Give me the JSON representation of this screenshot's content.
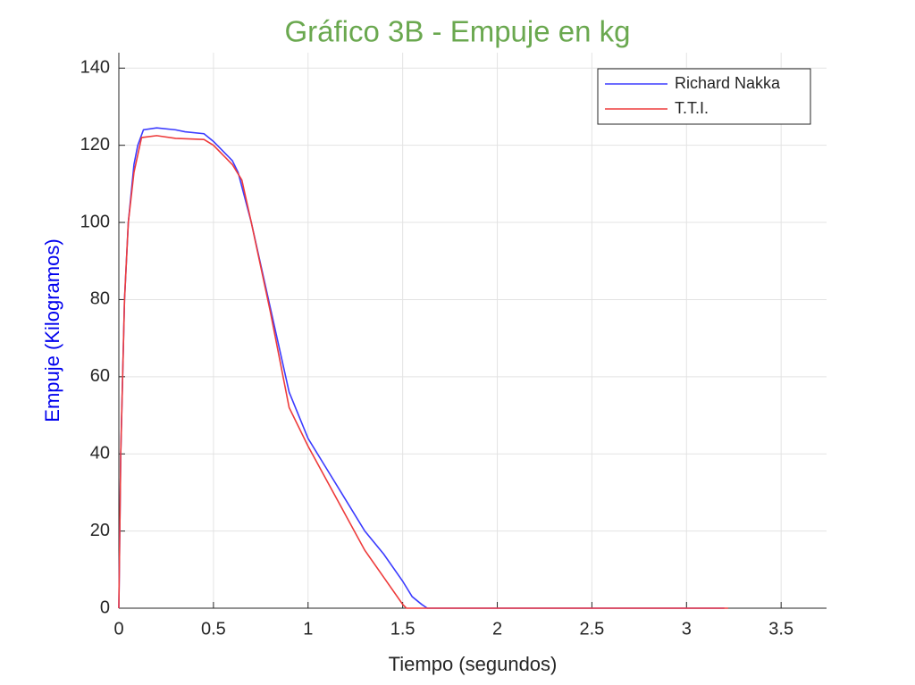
{
  "chart_data": {
    "type": "line",
    "title": "Gráfico 3B - Empuje en kg",
    "x_label": "Tiempo (segundos)",
    "y_label": "Empuje (Kilogramos)",
    "title_color": "#6aa84f",
    "y_label_color": "#0000ee",
    "xlim": [
      0,
      3.74
    ],
    "ylim": [
      0,
      144
    ],
    "xticks": [
      0,
      0.5,
      1,
      1.5,
      2,
      2.5,
      3,
      3.5
    ],
    "yticks": [
      0,
      20,
      40,
      60,
      80,
      100,
      120,
      140
    ],
    "grid": true,
    "legend": "upper-right",
    "series": [
      {
        "name": "Richard Nakka",
        "color": "#3b3bff",
        "x": [
          0,
          0.01,
          0.03,
          0.05,
          0.08,
          0.1,
          0.13,
          0.2,
          0.3,
          0.35,
          0.45,
          0.5,
          0.6,
          0.63,
          0.7,
          0.8,
          0.9,
          1.0,
          1.1,
          1.2,
          1.3,
          1.4,
          1.5,
          1.55,
          1.6,
          1.63,
          2,
          3.2
        ],
        "values": [
          0,
          40,
          80,
          100,
          115,
          120,
          124,
          124.5,
          124,
          123.5,
          123,
          121,
          116,
          113,
          100,
          78,
          56,
          44,
          36,
          28,
          20,
          14,
          7,
          3,
          1,
          0,
          0,
          0
        ]
      },
      {
        "name": "T.T.I.",
        "color": "#ee3b3b",
        "x": [
          0,
          0.01,
          0.03,
          0.05,
          0.08,
          0.12,
          0.2,
          0.3,
          0.45,
          0.5,
          0.6,
          0.65,
          0.7,
          0.8,
          0.9,
          1.0,
          1.1,
          1.2,
          1.3,
          1.4,
          1.5,
          1.52,
          2,
          3.22
        ],
        "values": [
          0,
          40,
          80,
          100,
          113,
          122,
          122.5,
          121.8,
          121.5,
          120,
          115,
          111,
          100,
          77,
          52,
          42,
          33,
          24,
          15,
          8,
          1,
          0,
          0,
          0
        ]
      }
    ]
  }
}
